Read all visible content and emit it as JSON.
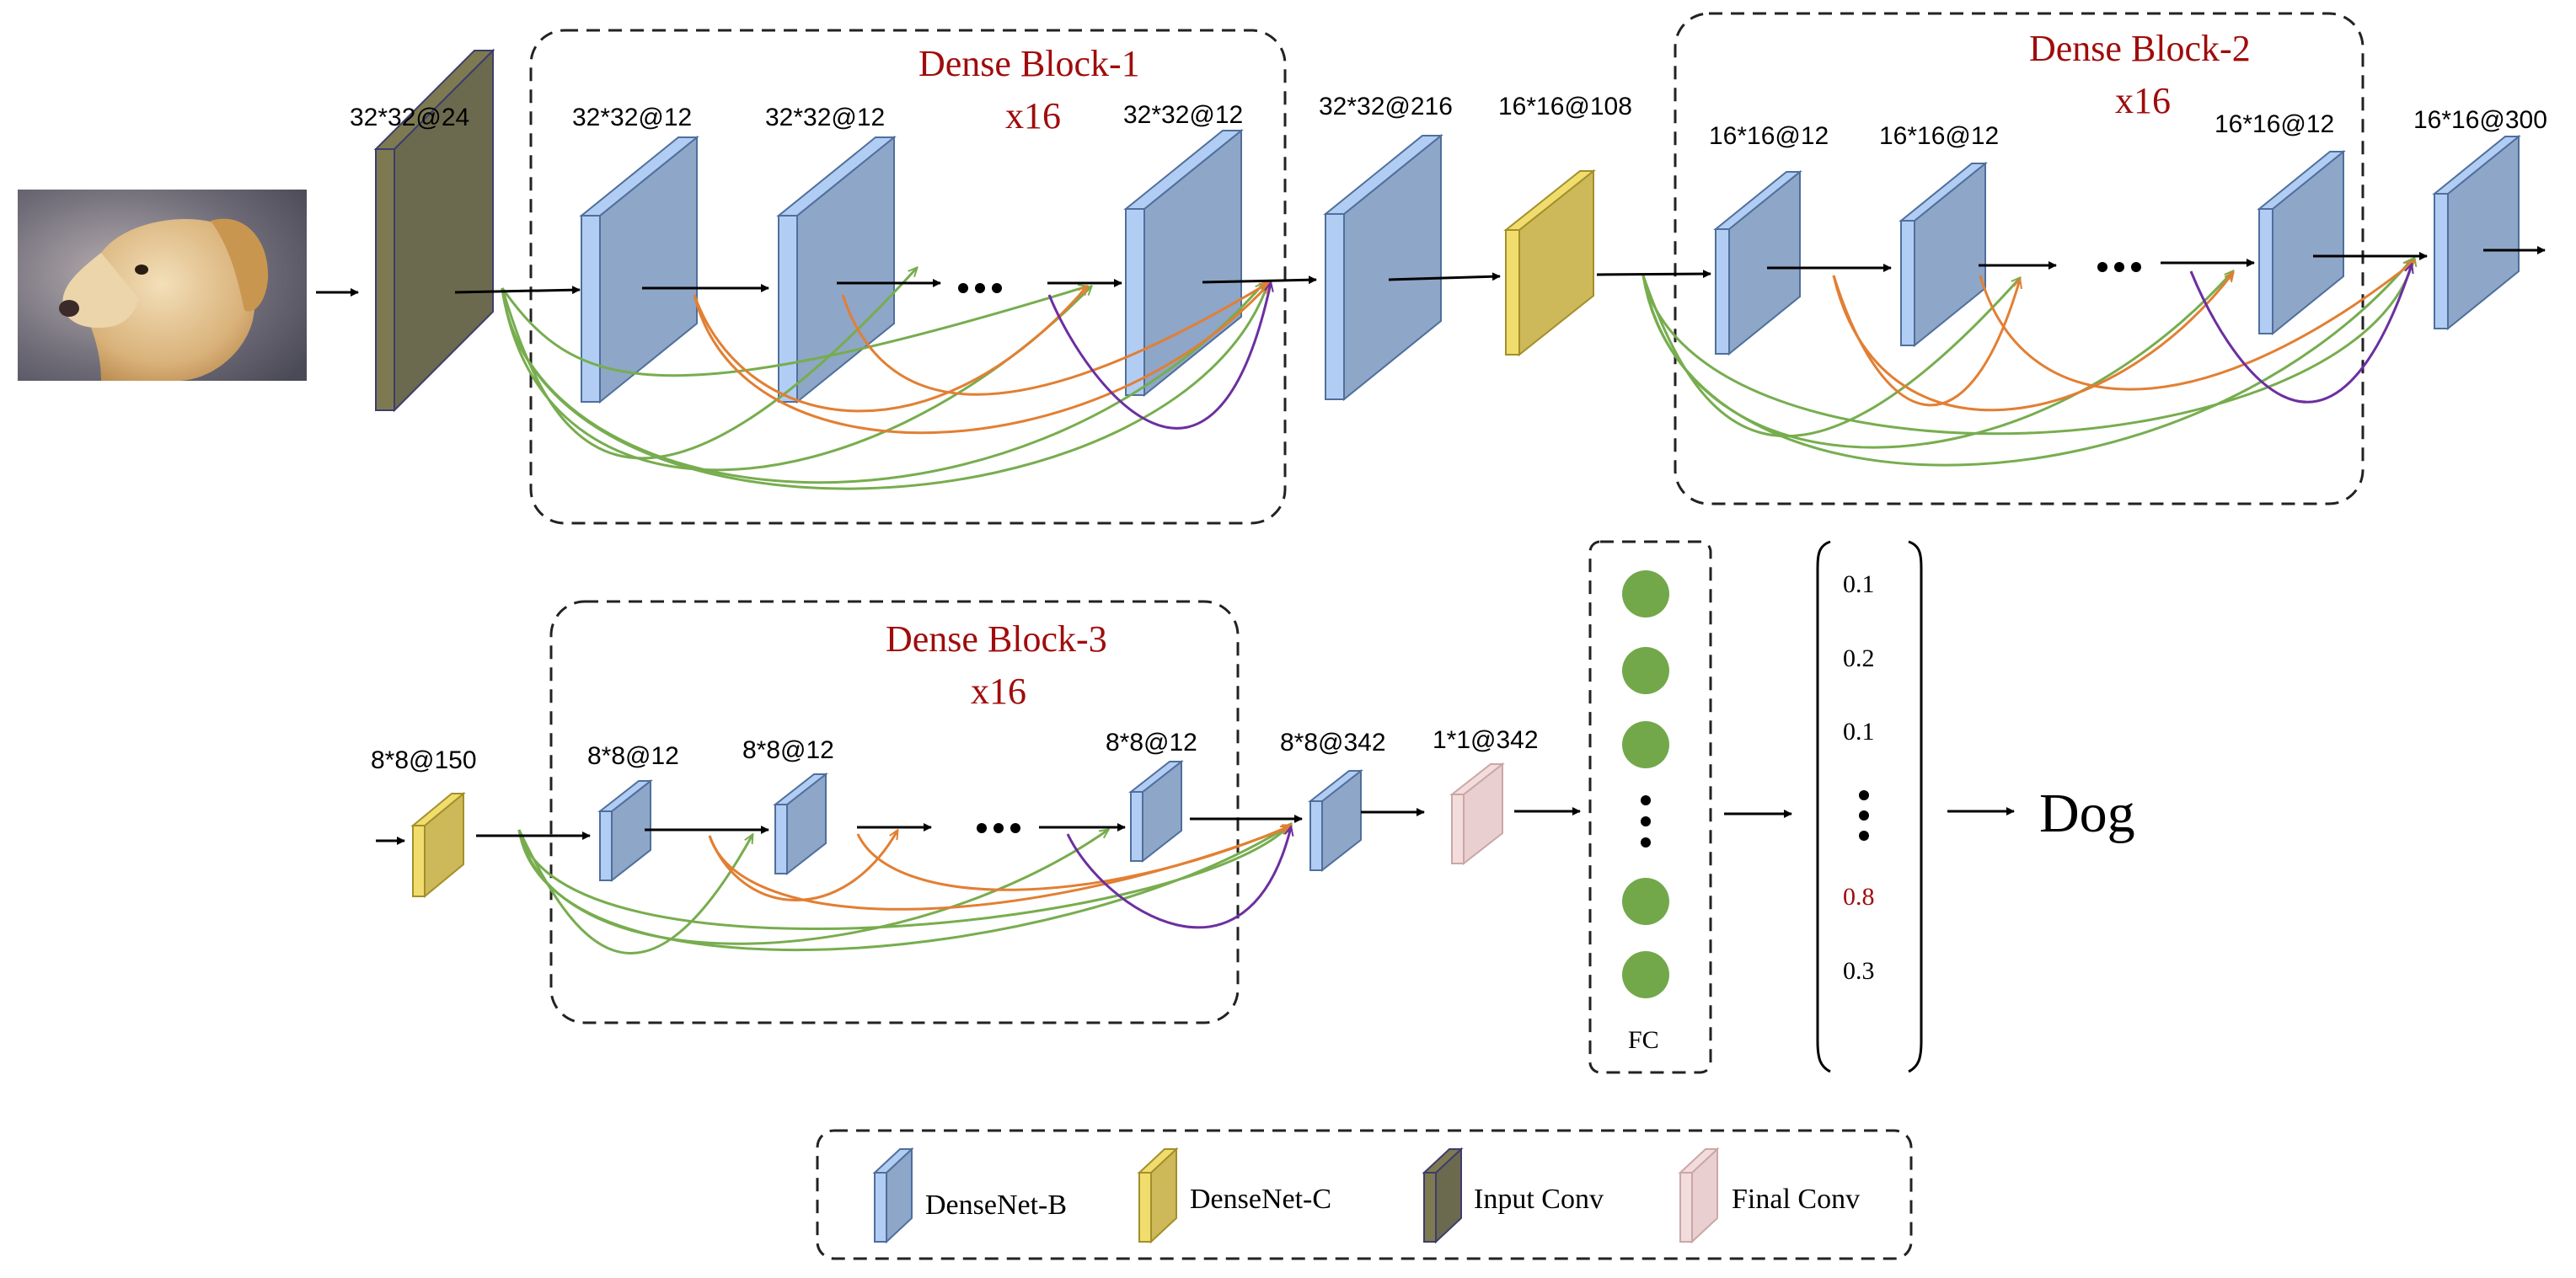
{
  "colors": {
    "densenet_b": "#8ea6c8",
    "densenet_b_side": "#b2cdf3",
    "densenet_c": "#cdb95a",
    "densenet_c_side": "#f1dc6e",
    "input_conv": "#6c6a4e",
    "final_conv": "#e9cfcf",
    "green": "#77ad4e",
    "orange": "#e27f33",
    "purple": "#6c2fa0",
    "block_title": "#a00c0c",
    "fc_node": "#72a84a"
  },
  "input_image": {
    "icon": "dog-photo-icon"
  },
  "row1": {
    "input_conv_label": "32*32@24",
    "block1": {
      "title": "Dense Block-1",
      "repeat": "x16",
      "layer_labels": [
        "32*32@12",
        "32*32@12",
        "32*32@12"
      ]
    },
    "after_block1_label": "32*32@216",
    "transition1_label": "16*16@108",
    "block2": {
      "title": "Dense Block-2",
      "repeat": "x16",
      "layer_labels": [
        "16*16@12",
        "16*16@12",
        "16*16@12"
      ]
    },
    "after_block2_label": "16*16@300"
  },
  "row2": {
    "transition2_label": "8*8@150",
    "block3": {
      "title": "Dense Block-3",
      "repeat": "x16",
      "layer_labels": [
        "8*8@12",
        "8*8@12",
        "8*8@12"
      ]
    },
    "after_block3_label": "8*8@342",
    "final_conv_label": "1*1@342",
    "fc_label": "FC",
    "probabilities": [
      "0.1",
      "0.2",
      "0.1",
      "0.8",
      "0.3"
    ],
    "highlight_probability": "0.8",
    "prediction": "Dog"
  },
  "legend": {
    "items": [
      {
        "label": "DenseNet-B",
        "icon": "densenet-b-icon"
      },
      {
        "label": "DenseNet-C",
        "icon": "densenet-c-icon"
      },
      {
        "label": "Input Conv",
        "icon": "input-conv-icon"
      },
      {
        "label": "Final Conv",
        "icon": "final-conv-icon"
      }
    ]
  }
}
